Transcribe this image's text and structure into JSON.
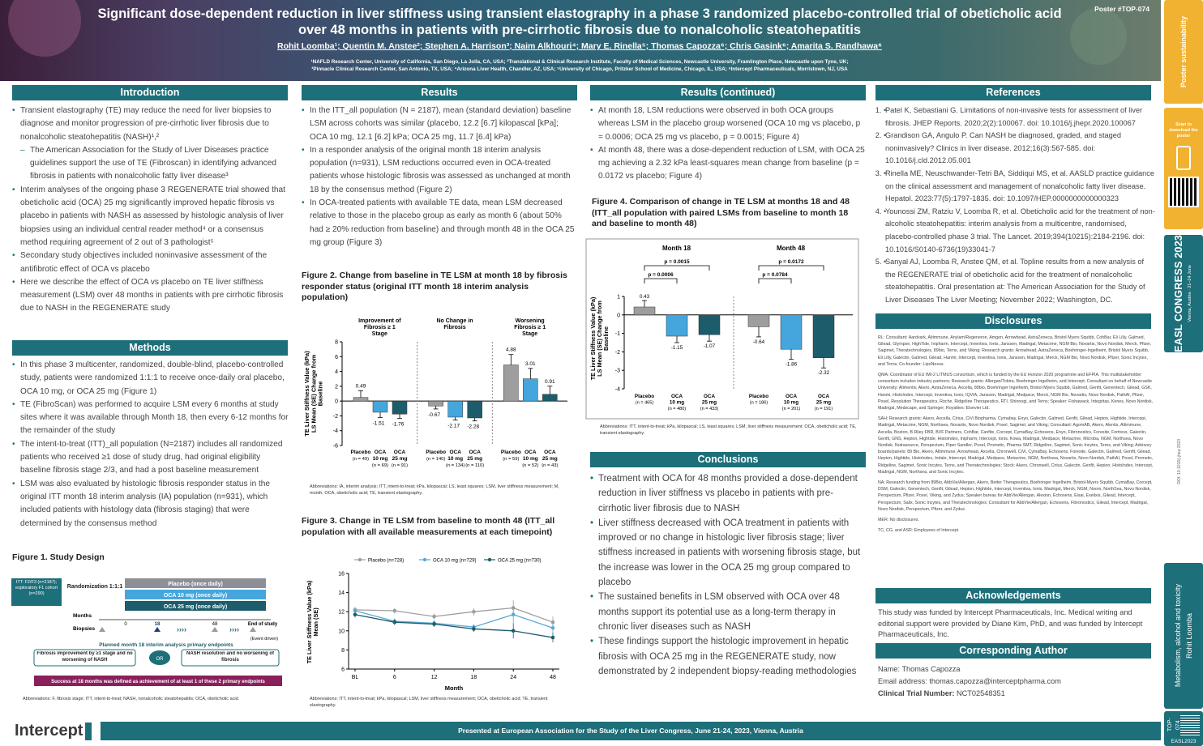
{
  "header": {
    "title": "Significant dose-dependent reduction in liver stiffness using transient elastography in a phase 3 randomized placebo-controlled trial of obeticholic acid over 48 months in patients with pre-cirrhotic fibrosis due to nonalcoholic steatohepatitis",
    "authors": "Rohit Loomba¹; Quentin M. Anstee²; Stephen A. Harrison³; Naim Alkhouri⁴; Mary E. Rinella⁵; Thomas Capozza⁶; Chris Gasink⁶; Amarita S. Randhawa⁶",
    "affil1": "¹NAFLD Research Center, University of California, San Diego, La Jolla, CA, USA; ²Translational & Clinical Research Institute, Faculty of Medical Sciences, Newcastle University, Framlington Place, Newcastle upon Tyne, UK;",
    "affil2": "³Pinnacle Clinical Research Center, San Antonio, TX, USA; ⁴Arizona Liver Health, Chandler, AZ, USA; ⁵University of Chicago, Pritzker School of Medicine, Chicago, IL, USA; ⁶Intercept Pharmaceuticals, Morristown, NJ, USA",
    "poster_id": "Poster #TOP-074"
  },
  "sidebar": {
    "poster_sustainability": "Poster sustainability",
    "scan": "Scan to download the poster",
    "congress": "EASL CONGRESS 2023",
    "congress_sub": "Vienna, Austria · 21–24 June",
    "link": "DOI: 10.1016/j.jhep.2023",
    "topic": "Metabolism, alcohol and toxicity",
    "author": "Rohit Loomba",
    "code": "TOP-074",
    "easl": "EASL2023"
  },
  "sections": {
    "intro": {
      "heading": "Introduction",
      "items": [
        "Transient elastography (TE) may reduce the need for liver biopsies to diagnose and monitor progression of pre-cirrhotic liver fibrosis due to nonalcoholic steatohepatitis (NASH)¹,²",
        "The American Association for the Study of Liver Diseases practice guidelines support the use of TE (Fibroscan) in identifying advanced fibrosis in patients with nonalcoholic fatty liver disease³",
        "Interim analyses of the ongoing phase 3 REGENERATE trial showed that obeticholic acid (OCA) 25 mg significantly improved hepatic fibrosis vs placebo in patients with NASH as assessed by histologic analysis of liver biopsies using an individual central reader method⁴ or a consensus method requiring agreement of 2 out of 3 pathologist⁵",
        "Secondary study objectives included noninvasive assessment of the antifibrotic effect of OCA vs placebo",
        "Here we describe the effect of OCA vs placebo on TE liver stiffness measurement (LSM) over 48 months in patients with pre cirrhotic fibrosis due to NASH in the REGENERATE study"
      ]
    },
    "methods": {
      "heading": "Methods",
      "items": [
        "In this phase 3 multicenter, randomized, double-blind, placebo-controlled study, patients were randomized 1:1:1 to receive once-daily oral placebo, OCA 10 mg, or OCA 25 mg (Figure 1)",
        "TE (FibroScan) was performed to acquire LSM every 6 months at study sites where it was available through Month 18, then every 6-12 months for the remainder of the study",
        "The intent-to-treat (ITT)_all population (N=2187) includes all randomized patients who received ≥1 dose of study drug, had original eligibility baseline fibrosis stage 2/3, and had a post baseline measurement",
        "LSM was also evaluated by histologic fibrosis responder status in the original ITT month 18 interim analysis (IA) population (n=931), which included patients with histology data (fibrosis staging) that were determined by the consensus method"
      ]
    },
    "results": {
      "heading": "Results",
      "items": [
        "In the ITT_all population (N = 2187), mean (standard deviation) baseline LSM across cohorts was similar (placebo, 12.2 [6.7] kilopascal [kPa]; OCA 10 mg, 12.1 [6.2] kPa; OCA 25 mg, 11.7 [6.4] kPa)",
        "In a responder analysis of the original month 18 interim analysis population (n=931), LSM reductions occurred even in OCA-treated patients whose histologic fibrosis was assessed as unchanged at month 18 by the consensus method (Figure 2)",
        "In OCA-treated patients with available TE data, mean LSM decreased relative to those in the placebo group as early as month 6 (about 50% had ≥ 20% reduction from baseline) and through month 48 in the OCA 25 mg group (Figure 3)"
      ]
    },
    "results2": {
      "heading": "Results (continued)",
      "items": [
        "At month 18, LSM reductions were observed in both OCA groups whereas LSM in the placebo group worsened (OCA 10 mg vs placebo, p = 0.0006; OCA 25 mg vs placebo, p = 0.0015; Figure 4)",
        "At month 48, there was a dose-dependent reduction of LSM, with OCA 25 mg achieving a 2.32 kPa least-squares mean change from baseline (p = 0.0172 vs placebo; Figure 4)"
      ]
    },
    "conclusions": {
      "heading": "Conclusions",
      "items": [
        "Treatment with OCA for 48 months provided a dose-dependent reduction in liver stiffness vs placebo in patients with pre-cirrhotic liver fibrosis due to NASH",
        "Liver stiffness decreased with OCA treatment in patients with improved or no change in histologic liver fibrosis stage; liver stiffness increased in patients with worsening fibrosis stage, but the increase was lower in the OCA 25 mg group compared to placebo",
        "The sustained benefits in LSM observed with OCA over 48 months support its potential use as a long-term therapy in chronic liver diseases such as NASH",
        "These findings support the histologic improvement in hepatic fibrosis with OCA 25 mg in the REGENERATE study, now demonstrated by 2 independent biopsy-reading methodologies"
      ]
    },
    "references": {
      "heading": "References",
      "items": [
        "Patel K, Sebastiani G. Limitations of non-invasive tests for assessment of liver fibrosis. JHEP Reports. 2020;2(2):100067. doi: 10.1016/j.jhepr.2020.100067",
        "Grandison GA, Angulo P. Can NASH be diagnosed, graded, and staged noninvasively? Clinics in liver disease. 2012;16(3):567-585. doi: 10.1016/j.cld.2012.05.001",
        "Rinella ME, Neuschwander-Tetri BA, Siddiqui MS, et al. AASLD practice guidance on the clinical assessment and management of nonalcoholic fatty liver disease. Hepatol. 2023:77(5):1797-1835. doi: 10.1097/HEP.0000000000000323",
        "Younossi ZM, Ratziu V, Loomba R, et al. Obeticholic acid for the treatment of non-alcoholic steatohepatitis: interim analysis from a multicentre, randomised, placebo-controlled phase 3 trial. The Lancet. 2019;394(10215):2184-2196. doi: 10.1016/S0140-6736(19)33041-7",
        "Sanyal AJ, Loomba R, Anstee QM, et al. Topline results from a new analysis of the REGENERATE trial of obeticholic acid for the treatment of nonalcoholic steatohepatitis. Oral presentation at: The American Association for the Study of Liver Diseases The Liver Meeting; November 2022; Washington, DC."
      ]
    },
    "disclosures": {
      "heading": "Disclosures",
      "items": [
        "RL: Consultant: Aardvark, Altimmune, Anylam/Regeneron, Amgen, Arrowhead, AstraZeneca, Bristol Myers Squibb, CohBar, Eli Lilly, Galmed, Gilead, Glympse, HighTide, Inipharm, Intercept, Inventiva, Ionis, Janssen, Madrigal, Metacrine, NGM Bio, Novartis, Novo Nordisk, Merck, Pfizer, Sagimet, Theratechnologies, 89bio, Terns, and Viking; Research grants: Arrowhead, AstraZeneca, Boehringer-Ingelheim, Bristol Myers Squibb, Eli Lilly, Galectin, Galmed, Gilead, Hanmi, Intercept, Inventiva, Ionis, Janssen, Madrigal, Merck, NGM Bio, Novo Nordisk, Pfizer, Sonic Incytes, and Terns; Co-founder: LipoNexus.",
        "QMA: Coordinator of EU IMI-2 LITMUS consortium, which is funded by the EU Horizon 2020 programme and EFPIA. This multistakeholder consortium includes industry partners; Research grants: Allergan/Tobira, Boehringer Ingelheim, and Intercept; Consultant on behalf of Newcastle University: Alimentiv, Akero, AstraZeneca, Axcella, 89bio, Boehringer Ingelheim, Bristol Myers Squibb, Galmed, Genfit, Genentech, Gilead, GSK, Hanmi, HistoIndex, Intercept, Inventiva, Ionis, IQVIA, Janssen, Madrigal, Medpace, Merck, NGM Bio, Novartis, Novo Nordisk, PathAI, Pfizer, Poxel, Resolution Therapeutics, Roche, Ridgeline Therapeutics, RTI, Shionogi, and Terns; Speaker: Fishawack, Integritas, Kenes, Novo Nordisk, Madrigal, Medscape, and Springer; Royalties: Elsevier Ltd.",
        "SAH: Research grants: Akero, Axcella, Cirius, CiVi Biopharma, Cymabay, Enyo, Galectin, Galmed, Genfit, Gilead, Hepion, Hightide, Intercept, Madrigal, Metacrine, NGM, Northsea, Novartis, Novo Nordisk, Poxel, Sagimet, and Viking; Consultant: AgomAB, Akero, Alentis, Altimmune, Axcella, Boston, B Riley FBR, BVF Partners, CohBar, Canfite, Corcept, CymaBay, Echosens, Enyo, Fibronostics, Foresite, Fortress, Galectin, Genfit, GNS, Hepion, Hightide, HistoIndex, Inipharm, Intercept, Ionis, Kowa, Madrigal, Medpace, Metacrine, Microba, NGM, Northsea, Novo Nordisk, Nutrasource, Perspectum, Piper Sandler, Poxel, Prometic, Pharma SMT, Ridgeline, Sagimet, Sonic Incytes, Terns, and Viking; Advisory boards/panels: 89 Bio, Akero, Altimmune, Arrowhead, Axcella, Chronwell, CiVi, CymaBay, Echosens, Foresite, Galectin, Galmed, Genfit, Gilead, Hepion, Hightide, HistoIndex, Indalo, Intercept, Madrigal, Medpace, Metacrine, NGM, Northsea, Novartis, Novo Nordisk, PathAI, Poxel, Prometic, Ridgeline, Sagimet, Sonic Incytes, Terns, and Theratechnologies; Stock: Akero, Chronwell, Cirius, Galectin, Genfit, Hepion, HistoIndex, Intercept, Madrigal, NGM, Northsea, and Sonic Incytes.",
        "NA: Research funding from 89Bio, AbbVie/Allergan, Akero, Better Therapeutics, Boehringer Ingelheim, Bristol-Myers Squibb, CymaBay, Corcept, DSM, Galectin, Genentech, Genfit, Gilead, Hepion, Hightide, Intercept, Inventiva, Ionis, Madrigal, Merck, NGM, Noom, NorthSea, Novo Nordisk, Perspectum, Pfizer, Poxel, Viking, and Zydus; Speaker bureau for AbbVie/Allergan, Alexion, Echosens, Eisai, Exelixis, Gilead, Intercept, Perspectum, Salix, Sonic Incytes, and Theratechnologies; Consultant for AbbVie/Allergan, Echosens, Fibronostics, Gilead, Intercept, Madrigal, Novo Nordisk, Perspectum, Pfizer, and Zydus.",
        "MER: No disclosures.",
        "TC, CG, and ASR: Employees of Intercept."
      ]
    },
    "ack": {
      "heading": "Acknowledgements",
      "text": "This study was funded by Intercept Pharmaceuticals, Inc. Medical writing and editorial support were provided by Diane Kim, PhD, and was funded by Intercept Pharmaceuticals, Inc."
    },
    "author": {
      "heading": "Corresponding Author",
      "name": "Name: Thomas Capozza",
      "email": "Email address: thomas.capozza@interceptpharma.com",
      "trial_label": "Clinical Trial Number:",
      "trial": "NCT02548351"
    }
  },
  "figures": {
    "fig1": {
      "title": "Figure 1. Study Design",
      "itt": "ITT: F2/F3 (n=2187); exploratory F1 cohort (n=290)",
      "rand": "Randomization 1:1:1",
      "arms": [
        "Placebo (once daily)",
        "OCA 10 mg (once daily)",
        "OCA 25 mg (once daily)"
      ],
      "months_label": "Months",
      "biopsies_label": "Biopsies",
      "ticks": [
        "0",
        "18",
        "48"
      ],
      "end": "End of study",
      "event": "(Event driven)",
      "planned": "Planned month 18 interim analysis primary endpoints",
      "ep1": "Fibrosis improvement by ≥1 stage and no worsening of NASH",
      "or": "OR",
      "ep2": "NASH resolution and no worsening of fibrosis",
      "success": "Success at 18 months was defined as achievement of at least 1 of these 2 primary endpoints",
      "abbr": "Abbreviations: F, fibrosis stage; ITT, intent-to-treat; NASH, nonalcoholic steatohepatitis; OCA, obeticholic acid."
    },
    "fig2": {
      "title": "Figure 2. Change from baseline in TE LSM at month 18 by fibrosis responder status (original ITT month 18 interim analysis population)",
      "abbr": "Abbreviations: IA, interim analysis; ITT, intent-to-treat; kPa, kilopascal; LS, least squares; LSM, liver stiffness measurement; M, month; OCA, obeticholic acid; TE, transient elastography."
    },
    "fig3": {
      "title": "Figure 3. Change in TE LSM from baseline to month 48 (ITT_all population with all available measurements at each timepoint)",
      "abbr": "Abbreviations: ITT, intent-to-treat; kPa, kilopascal; LSM, liver stiffness measurement; OCA, obeticholic acid; TE, transient elastography."
    },
    "fig4": {
      "title": "Figure 4. Comparison of change in TE LSM at months 18 and 48 (ITT_all population with paired LSMs from baseline to month 18 and baseline to month 48)",
      "abbr": "Abbreviations: ITT, intent-to-treat; kPa, kilopascal; LS, least squares; LSM, liver stiffness measurement; OCA, obeticholic acid; TE, transient elastography."
    }
  },
  "chart_data": [
    {
      "id": "fig2",
      "type": "bar",
      "ylabel": "TE Liver Stiffness Value (kPa) LS Mean (SE) Change from Baseline",
      "ylim": [
        -6,
        8
      ],
      "yticks": [
        -6,
        -4,
        -2,
        0,
        2,
        4,
        6,
        8
      ],
      "groups": [
        {
          "label": "Improvement of Fibrosis ≥ 1 Stage",
          "bars": [
            {
              "arm": "Placebo",
              "n": "(n = 49)",
              "value": 0.49,
              "se": 0.9
            },
            {
              "arm": "OCA 10 mg",
              "n": "(n = 69)",
              "value": -1.51,
              "se": 0.7
            },
            {
              "arm": "OCA 25 mg",
              "n": "(n = 91)",
              "value": -1.76,
              "se": 0.6
            }
          ]
        },
        {
          "label": "No Change in Fibrosis",
          "bars": [
            {
              "arm": "Placebo",
              "n": "(n = 140)",
              "value": -0.67,
              "se": 0.4
            },
            {
              "arm": "OCA 10 mg",
              "n": "(n = 134)",
              "value": -2.17,
              "se": 0.4
            },
            {
              "arm": "OCA 25 mg",
              "n": "(n = 110)",
              "value": -2.28,
              "se": 0.4
            }
          ]
        },
        {
          "label": "Worsening Fibrosis ≥ 1 Stage",
          "bars": [
            {
              "arm": "Placebo",
              "n": "(n = 59)",
              "value": 4.88,
              "se": 1.4
            },
            {
              "arm": "OCA 10 mg",
              "n": "(n = 52)",
              "value": 3.01,
              "se": 1.4
            },
            {
              "arm": "OCA 25 mg",
              "n": "(n = 43)",
              "value": 0.91,
              "se": 1.1
            }
          ]
        }
      ],
      "colors": [
        "#9e9e9e",
        "#44a6dd",
        "#1d5c6b"
      ]
    },
    {
      "id": "fig3",
      "type": "line",
      "ylabel": "TE Liver Stiffness Value (kPa) Mean (SE)",
      "xlabel": "Month",
      "ylim": [
        6,
        16
      ],
      "yticks": [
        6,
        8,
        10,
        12,
        14,
        16
      ],
      "x": [
        "BL",
        "6",
        "12",
        "18",
        "24",
        "48"
      ],
      "series": [
        {
          "name": "Placebo (n=728)",
          "color": "#9e9e9e",
          "values": [
            12.2,
            12.1,
            11.5,
            12.0,
            12.4,
            10.9
          ],
          "se": [
            0.3,
            0.3,
            0.3,
            0.4,
            0.8,
            0.6
          ]
        },
        {
          "name": "OCA 10 mg (n=729)",
          "color": "#5aa9d6",
          "values": [
            12.1,
            11.0,
            10.8,
            10.4,
            11.7,
            10.3
          ],
          "se": [
            0.3,
            0.3,
            0.3,
            0.3,
            0.9,
            0.6
          ]
        },
        {
          "name": "OCA 25 mg (n=730)",
          "color": "#1d5c6b",
          "values": [
            11.7,
            10.9,
            10.7,
            10.2,
            10.0,
            9.3
          ],
          "se": [
            0.3,
            0.3,
            0.3,
            0.3,
            0.8,
            0.5
          ]
        }
      ]
    },
    {
      "id": "fig4",
      "type": "bar",
      "ylabel": "TE Liver Stiffness Value (kPa) LS Mean (SE) Change from Baseline",
      "ylim": [
        -4,
        1
      ],
      "yticks": [
        -4,
        -3,
        -2,
        -1,
        0,
        1
      ],
      "groups": [
        {
          "label": "Month 18",
          "p_outer": "p = 0.0015",
          "p_inner": "p = 0.0006",
          "bars": [
            {
              "arm": "Placebo",
              "n": "(n = 465)",
              "value": 0.43,
              "se": 0.35
            },
            {
              "arm": "OCA 10 mg",
              "n": "(n = 480)",
              "value": -1.15,
              "se": 0.35
            },
            {
              "arm": "OCA 25 mg",
              "n": "(n = 433)",
              "value": -1.07,
              "se": 0.35
            }
          ]
        },
        {
          "label": "Month 48",
          "p_outer": "p = 0.0172",
          "p_inner": "p = 0.0784",
          "bars": [
            {
              "arm": "Placebo",
              "n": "(n = 186)",
              "value": -0.64,
              "se": 0.55
            },
            {
              "arm": "OCA 10 mg",
              "n": "(n = 201)",
              "value": -1.86,
              "se": 0.55
            },
            {
              "arm": "OCA 25 mg",
              "n": "(n = 191)",
              "value": -2.32,
              "se": 0.55
            }
          ]
        }
      ],
      "colors": [
        "#9e9e9e",
        "#44a6dd",
        "#1d5c6b"
      ]
    }
  ],
  "footer": {
    "text": "Presented at European Association for the Study of the Liver Congress, June 21-24, 2023, Vienna, Austria",
    "logo": "Intercept"
  }
}
